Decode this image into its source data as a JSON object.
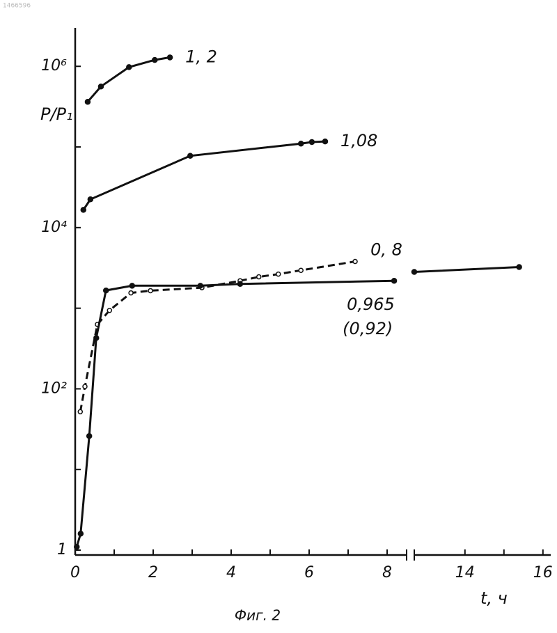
{
  "document_number": "1466596",
  "chart_data": {
    "type": "line",
    "y_label": "P/P₁",
    "x_label": "t, ч",
    "caption": "Фиг. 2",
    "log_y": true,
    "ylim": [
      1,
      3000000
    ],
    "yticks": [
      1,
      {
        "value": 100,
        "label": "10²"
      },
      {
        "value": 10000,
        "label": "10⁴"
      },
      {
        "value": 1000000,
        "label": "10⁶"
      }
    ],
    "yminor": [
      10,
      1000,
      100000
    ],
    "xlim": [
      0,
      16.2
    ],
    "x_break": [
      8.5,
      12.7
    ],
    "xticks": [
      0,
      2,
      4,
      6,
      8,
      14,
      16
    ],
    "xminor": [
      1,
      3,
      5,
      7,
      15
    ],
    "series": [
      {
        "name": "1, 2",
        "color": "#111",
        "dash": false,
        "marker": "filled",
        "x": [
          0.32,
          0.66,
          1.38,
          2.04,
          2.43
        ],
        "values": [
          363000,
          562000,
          977000,
          1200000,
          1290000
        ]
      },
      {
        "name": "1,08",
        "color": "#111",
        "dash": false,
        "marker": "filled",
        "x": [
          0.21,
          0.39,
          2.95,
          5.79,
          6.07,
          6.41
        ],
        "values": [
          16600,
          22400,
          77600,
          110000,
          115000,
          117000
        ]
      },
      {
        "name": "0, 8",
        "color": "#111",
        "dash": true,
        "marker": "open",
        "x": [
          0.13,
          0.25,
          0.57,
          0.88,
          1.43,
          1.93,
          3.25,
          4.23,
          4.71,
          5.21,
          5.79,
          7.18
        ],
        "values": [
          52,
          107,
          630,
          940,
          1550,
          1650,
          1800,
          2190,
          2450,
          2650,
          2950,
          3800
        ]
      },
      {
        "name": "0,965",
        "name_note": "(0,92)",
        "color": "#111",
        "dash": false,
        "marker": "filled",
        "x": [
          0.04,
          0.14,
          0.36,
          0.54,
          0.79,
          1.46,
          3.21,
          4.23,
          8.18,
          null,
          12.7,
          15.39
        ],
        "values": [
          1.1,
          1.6,
          26,
          427,
          1660,
          1900,
          1900,
          2000,
          2190,
          null,
          2820,
          3240
        ]
      }
    ]
  }
}
